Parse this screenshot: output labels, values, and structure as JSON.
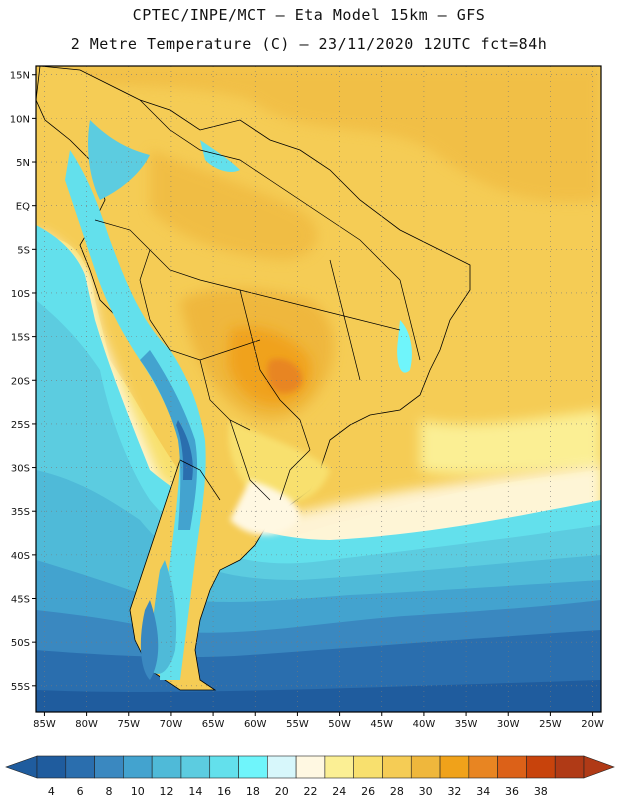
{
  "header": {
    "line1": "CPTEC/INPE/MCT –  Eta Model 15km – GFS",
    "line2": "2 Metre Temperature (C) – 23/11/2020 12UTC fct=84h"
  },
  "map": {
    "lat_labels": [
      "15N",
      "10N",
      "5N",
      "EQ",
      "5S",
      "10S",
      "15S",
      "20S",
      "25S",
      "30S",
      "35S",
      "40S",
      "45S",
      "50S",
      "55S"
    ],
    "lon_labels": [
      "85W",
      "80W",
      "75W",
      "70W",
      "65W",
      "60W",
      "55W",
      "50W",
      "45W",
      "40W",
      "35W",
      "30W",
      "25W",
      "20W"
    ],
    "extent": {
      "lon_min": -86,
      "lon_max": -19,
      "lat_min": -58,
      "lat_max": 16
    }
  },
  "colorbar": {
    "labels": [
      "4",
      "6",
      "8",
      "10",
      "12",
      "14",
      "16",
      "18",
      "20",
      "22",
      "24",
      "26",
      "28",
      "30",
      "32",
      "34",
      "36",
      "38"
    ],
    "colors": [
      "#1f5c9e",
      "#2a6eae",
      "#3a88c0",
      "#43a3cf",
      "#4fbad8",
      "#5ccce0",
      "#63e0ec",
      "#6ff5fb",
      "#d7f7fb",
      "#fff8e2",
      "#fbef94",
      "#f8e06e",
      "#f5cc55",
      "#efb73c",
      "#f0a21a",
      "#e88522",
      "#dc6118",
      "#c8430c",
      "#b03a16"
    ],
    "low_arrow_color": "#1f5c9e",
    "high_arrow_color": "#b03a16"
  }
}
